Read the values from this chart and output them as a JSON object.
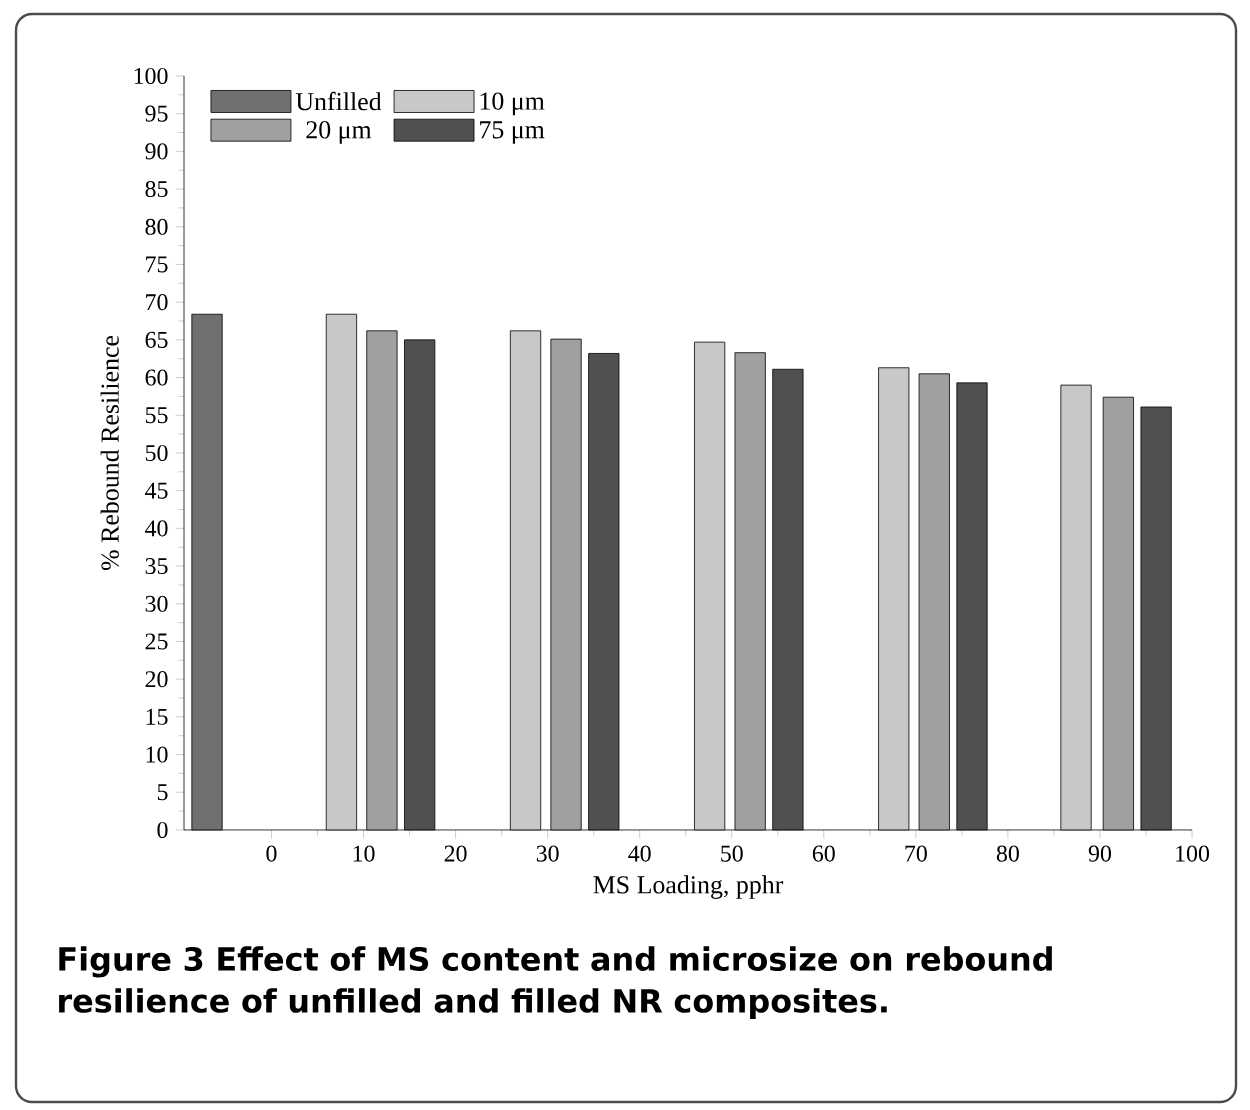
{
  "chart_data": {
    "type": "bar",
    "xlabel": "MS Loading, pphr",
    "ylabel": "% Rebound Resilience",
    "xlim": [
      -9.5,
      100
    ],
    "xticks": [
      0,
      10,
      20,
      30,
      40,
      50,
      60,
      70,
      80,
      90,
      100
    ],
    "ylim": [
      0,
      100
    ],
    "yticks": [
      0,
      5,
      10,
      15,
      20,
      25,
      30,
      35,
      40,
      45,
      50,
      55,
      60,
      65,
      70,
      75,
      80,
      85,
      90,
      95,
      100
    ],
    "legend": "top left",
    "series": [
      {
        "name": "Unfilled",
        "color": "#707070",
        "x": [
          -7
        ],
        "values": [
          68.4
        ]
      },
      {
        "name": "10 μm",
        "color": "#c8c8c8",
        "x": [
          7.6,
          27.6,
          47.6,
          67.6,
          87.4
        ],
        "values": [
          68.4,
          66.2,
          64.7,
          61.3,
          59
        ]
      },
      {
        "name": "20 μm",
        "color": "#a0a0a0",
        "x": [
          12,
          32,
          52,
          72,
          92
        ],
        "values": [
          66.2,
          65.1,
          63.3,
          60.5,
          57.4
        ]
      },
      {
        "name": "75 μm",
        "color": "#505050",
        "x": [
          16.1,
          36.1,
          56.1,
          76.1,
          96.1
        ],
        "values": [
          65,
          63.2,
          61.1,
          59.3,
          56.1
        ]
      }
    ],
    "annotations": [
      "**Figure 3** Effect of MS content and microsize on rebound resilience of unfilled and filled NR composites."
    ]
  }
}
